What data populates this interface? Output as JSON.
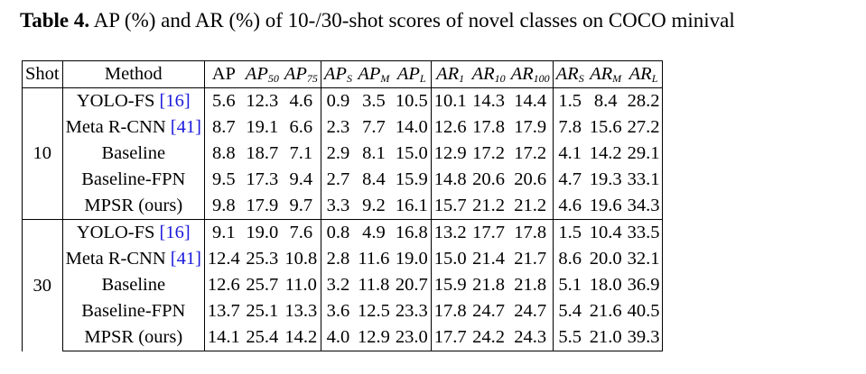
{
  "caption": {
    "label": "Table 4.",
    "text": "AP (%) and AR (%) of 10-/30-shot scores of novel classes on COCO minival"
  },
  "header": {
    "shot": "Shot",
    "method": "Method",
    "ap": "AP",
    "ap50": {
      "base": "AP",
      "sub": "50"
    },
    "ap75": {
      "base": "AP",
      "sub": "75"
    },
    "aps": {
      "base": "AP",
      "sub": "S"
    },
    "apm": {
      "base": "AP",
      "sub": "M"
    },
    "apl": {
      "base": "AP",
      "sub": "L"
    },
    "ar1": {
      "base": "AR",
      "sub": "1"
    },
    "ar10": {
      "base": "AR",
      "sub": "10"
    },
    "ar100": {
      "base": "AR",
      "sub": "100"
    },
    "ars": {
      "base": "AR",
      "sub": "S"
    },
    "arm": {
      "base": "AR",
      "sub": "M"
    },
    "arl": {
      "base": "AR",
      "sub": "L"
    }
  },
  "groups": [
    {
      "shot": "10",
      "rows": [
        {
          "method": "YOLO-FS",
          "ref": "[16]",
          "values": [
            "5.6",
            "12.3",
            "4.6",
            "0.9",
            "3.5",
            "10.5",
            "10.1",
            "14.3",
            "14.4",
            "1.5",
            "8.4",
            "28.2"
          ],
          "bold": []
        },
        {
          "method": "Meta R-CNN",
          "ref": "[41]",
          "values": [
            "8.7",
            "19.1",
            "6.6",
            "2.3",
            "7.7",
            "14.0",
            "12.6",
            "17.8",
            "17.9",
            "7.8",
            "15.6",
            "27.2"
          ],
          "bold": [
            1,
            9
          ]
        },
        {
          "method": "Baseline",
          "ref": "",
          "values": [
            "8.8",
            "18.7",
            "7.1",
            "2.9",
            "8.1",
            "15.0",
            "12.9",
            "17.2",
            "17.2",
            "4.1",
            "14.2",
            "29.1"
          ],
          "bold": []
        },
        {
          "method": "Baseline-FPN",
          "ref": "",
          "values": [
            "9.5",
            "17.3",
            "9.4",
            "2.7",
            "8.4",
            "15.9",
            "14.8",
            "20.6",
            "20.6",
            "4.7",
            "19.3",
            "33.1"
          ],
          "bold": []
        },
        {
          "method": "MPSR (ours)",
          "ref": "",
          "values": [
            "9.8",
            "17.9",
            "9.7",
            "3.3",
            "9.2",
            "16.1",
            "15.7",
            "21.2",
            "21.2",
            "4.6",
            "19.6",
            "34.3"
          ],
          "bold": [
            0,
            2,
            3,
            4,
            5,
            6,
            7,
            8,
            10,
            11
          ]
        }
      ]
    },
    {
      "shot": "30",
      "rows": [
        {
          "method": "YOLO-FS",
          "ref": "[16]",
          "values": [
            "9.1",
            "19.0",
            "7.6",
            "0.8",
            "4.9",
            "16.8",
            "13.2",
            "17.7",
            "17.8",
            "1.5",
            "10.4",
            "33.5"
          ],
          "bold": []
        },
        {
          "method": "Meta R-CNN",
          "ref": "[41]",
          "values": [
            "12.4",
            "25.3",
            "10.8",
            "2.8",
            "11.6",
            "19.0",
            "15.0",
            "21.4",
            "21.7",
            "8.6",
            "20.0",
            "32.1"
          ],
          "bold": [
            9
          ]
        },
        {
          "method": "Baseline",
          "ref": "",
          "values": [
            "12.6",
            "25.7",
            "11.0",
            "3.2",
            "11.8",
            "20.7",
            "15.9",
            "21.8",
            "21.8",
            "5.1",
            "18.0",
            "36.9"
          ],
          "bold": [
            1
          ]
        },
        {
          "method": "Baseline-FPN",
          "ref": "",
          "values": [
            "13.7",
            "25.1",
            "13.3",
            "3.6",
            "12.5",
            "23.3",
            "17.8",
            "24.7",
            "24.7",
            "5.4",
            "21.6",
            "40.5"
          ],
          "bold": [
            5,
            6,
            7,
            8,
            10,
            11
          ]
        },
        {
          "method": "MPSR (ours)",
          "ref": "",
          "values": [
            "14.1",
            "25.4",
            "14.2",
            "4.0",
            "12.9",
            "23.0",
            "17.7",
            "24.2",
            "24.3",
            "5.5",
            "21.0",
            "39.3"
          ],
          "bold": [
            0,
            2,
            3,
            4
          ]
        }
      ]
    }
  ]
}
